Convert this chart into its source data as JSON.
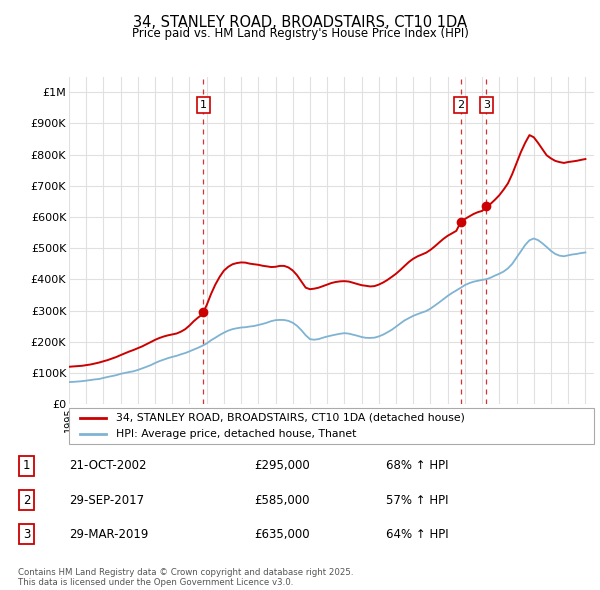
{
  "title": "34, STANLEY ROAD, BROADSTAIRS, CT10 1DA",
  "subtitle": "Price paid vs. HM Land Registry's House Price Index (HPI)",
  "legend_label_red": "34, STANLEY ROAD, BROADSTAIRS, CT10 1DA (detached house)",
  "legend_label_blue": "HPI: Average price, detached house, Thanet",
  "footer": "Contains HM Land Registry data © Crown copyright and database right 2025.\nThis data is licensed under the Open Government Licence v3.0.",
  "sale_annotations": [
    {
      "num": "1",
      "date": "21-OCT-2002",
      "price": "£295,000",
      "change": "68% ↑ HPI",
      "x_year": 2002.8
    },
    {
      "num": "2",
      "date": "29-SEP-2017",
      "price": "£585,000",
      "change": "57% ↑ HPI",
      "x_year": 2017.75
    },
    {
      "num": "3",
      "date": "29-MAR-2019",
      "price": "£635,000",
      "change": "64% ↑ HPI",
      "x_year": 2019.25
    }
  ],
  "red_color": "#cc0000",
  "blue_color": "#7fb3d3",
  "dashed_line_color": "#cc0000",
  "background_color": "#ffffff",
  "grid_color": "#e0e0e0",
  "ylim": [
    0,
    1050000
  ],
  "xlim_start": 1995,
  "xlim_end": 2025.5,
  "yticks": [
    0,
    100000,
    200000,
    300000,
    400000,
    500000,
    600000,
    700000,
    800000,
    900000,
    1000000
  ],
  "ytick_labels": [
    "£0",
    "£100K",
    "£200K",
    "£300K",
    "£400K",
    "£500K",
    "£600K",
    "£700K",
    "£800K",
    "£900K",
    "£1M"
  ],
  "hpi_years": [
    1995.0,
    1995.25,
    1995.5,
    1995.75,
    1996.0,
    1996.25,
    1996.5,
    1996.75,
    1997.0,
    1997.25,
    1997.5,
    1997.75,
    1998.0,
    1998.25,
    1998.5,
    1998.75,
    1999.0,
    1999.25,
    1999.5,
    1999.75,
    2000.0,
    2000.25,
    2000.5,
    2000.75,
    2001.0,
    2001.25,
    2001.5,
    2001.75,
    2002.0,
    2002.25,
    2002.5,
    2002.75,
    2003.0,
    2003.25,
    2003.5,
    2003.75,
    2004.0,
    2004.25,
    2004.5,
    2004.75,
    2005.0,
    2005.25,
    2005.5,
    2005.75,
    2006.0,
    2006.25,
    2006.5,
    2006.75,
    2007.0,
    2007.25,
    2007.5,
    2007.75,
    2008.0,
    2008.25,
    2008.5,
    2008.75,
    2009.0,
    2009.25,
    2009.5,
    2009.75,
    2010.0,
    2010.25,
    2010.5,
    2010.75,
    2011.0,
    2011.25,
    2011.5,
    2011.75,
    2012.0,
    2012.25,
    2012.5,
    2012.75,
    2013.0,
    2013.25,
    2013.5,
    2013.75,
    2014.0,
    2014.25,
    2014.5,
    2014.75,
    2015.0,
    2015.25,
    2015.5,
    2015.75,
    2016.0,
    2016.25,
    2016.5,
    2016.75,
    2017.0,
    2017.25,
    2017.5,
    2017.75,
    2018.0,
    2018.25,
    2018.5,
    2018.75,
    2019.0,
    2019.25,
    2019.5,
    2019.75,
    2020.0,
    2020.25,
    2020.5,
    2020.75,
    2021.0,
    2021.25,
    2021.5,
    2021.75,
    2022.0,
    2022.25,
    2022.5,
    2022.75,
    2023.0,
    2023.25,
    2023.5,
    2023.75,
    2024.0,
    2024.25,
    2024.5,
    2024.75,
    2025.0
  ],
  "hpi_vals": [
    70000,
    71000,
    72000,
    73000,
    75000,
    77000,
    79000,
    81000,
    84000,
    87000,
    90000,
    93000,
    97000,
    100000,
    103000,
    106000,
    110000,
    115000,
    120000,
    126000,
    132000,
    138000,
    143000,
    147000,
    151000,
    155000,
    160000,
    165000,
    170000,
    176000,
    182000,
    188000,
    196000,
    206000,
    215000,
    224000,
    232000,
    238000,
    242000,
    245000,
    247000,
    248000,
    250000,
    252000,
    256000,
    260000,
    264000,
    268000,
    271000,
    272000,
    271000,
    268000,
    262000,
    252000,
    238000,
    222000,
    210000,
    208000,
    210000,
    214000,
    218000,
    222000,
    225000,
    227000,
    229000,
    228000,
    225000,
    222000,
    218000,
    216000,
    215000,
    216000,
    220000,
    225000,
    232000,
    240000,
    250000,
    260000,
    270000,
    278000,
    285000,
    290000,
    295000,
    300000,
    308000,
    318000,
    328000,
    338000,
    348000,
    357000,
    365000,
    373000,
    382000,
    388000,
    393000,
    396000,
    398000,
    400000,
    405000,
    412000,
    418000,
    425000,
    435000,
    450000,
    470000,
    490000,
    510000,
    525000,
    530000,
    525000,
    515000,
    503000,
    490000,
    480000,
    475000,
    473000,
    476000,
    479000,
    481000,
    483000,
    485000
  ],
  "prop_years": [
    1995.0,
    1995.25,
    1995.5,
    1995.75,
    1996.0,
    1996.25,
    1996.5,
    1996.75,
    1997.0,
    1997.25,
    1997.5,
    1997.75,
    1998.0,
    1998.25,
    1998.5,
    1998.75,
    1999.0,
    1999.25,
    1999.5,
    1999.75,
    2000.0,
    2000.25,
    2000.5,
    2000.75,
    2001.0,
    2001.25,
    2001.5,
    2001.75,
    2002.0,
    2002.25,
    2002.5,
    2002.75,
    2003.0,
    2003.25,
    2003.5,
    2003.75,
    2004.0,
    2004.25,
    2004.5,
    2004.75,
    2005.0,
    2005.25,
    2005.5,
    2005.75,
    2006.0,
    2006.25,
    2006.5,
    2006.75,
    2007.0,
    2007.25,
    2007.5,
    2007.75,
    2008.0,
    2008.25,
    2008.5,
    2008.75,
    2009.0,
    2009.25,
    2009.5,
    2009.75,
    2010.0,
    2010.25,
    2010.5,
    2010.75,
    2011.0,
    2011.25,
    2011.5,
    2011.75,
    2012.0,
    2012.25,
    2012.5,
    2012.75,
    2013.0,
    2013.25,
    2013.5,
    2013.75,
    2014.0,
    2014.25,
    2014.5,
    2014.75,
    2015.0,
    2015.25,
    2015.5,
    2015.75,
    2016.0,
    2016.25,
    2016.5,
    2016.75,
    2017.0,
    2017.25,
    2017.5,
    2017.75,
    2018.0,
    2018.25,
    2018.5,
    2018.75,
    2019.0,
    2019.25,
    2019.5,
    2019.75,
    2020.0,
    2020.25,
    2020.5,
    2020.75,
    2021.0,
    2021.25,
    2021.5,
    2021.75,
    2022.0,
    2022.25,
    2022.5,
    2022.75,
    2023.0,
    2023.25,
    2023.5,
    2023.75,
    2024.0,
    2024.25,
    2024.5,
    2024.75,
    2025.0
  ],
  "prop_vals": [
    120000,
    121000,
    122000,
    123000,
    125000,
    127000,
    130000,
    133000,
    137000,
    141000,
    146000,
    151000,
    157000,
    163000,
    169000,
    174000,
    180000,
    186000,
    193000,
    200000,
    207000,
    213000,
    218000,
    222000,
    225000,
    228000,
    234000,
    242000,
    254000,
    268000,
    280000,
    290000,
    320000,
    355000,
    385000,
    410000,
    430000,
    442000,
    450000,
    454000,
    456000,
    455000,
    452000,
    450000,
    448000,
    445000,
    443000,
    441000,
    442000,
    445000,
    445000,
    440000,
    430000,
    415000,
    395000,
    375000,
    370000,
    372000,
    375000,
    380000,
    385000,
    390000,
    393000,
    395000,
    396000,
    395000,
    391000,
    387000,
    383000,
    381000,
    379000,
    380000,
    385000,
    392000,
    400000,
    410000,
    420000,
    432000,
    445000,
    458000,
    468000,
    476000,
    482000,
    488000,
    497000,
    508000,
    520000,
    532000,
    542000,
    550000,
    558000,
    585000,
    596000,
    604000,
    612000,
    618000,
    622000,
    635000,
    645000,
    658000,
    672000,
    690000,
    710000,
    740000,
    775000,
    810000,
    840000,
    865000,
    858000,
    840000,
    820000,
    800000,
    790000,
    782000,
    778000,
    775000,
    778000,
    780000,
    782000,
    785000,
    788000
  ]
}
